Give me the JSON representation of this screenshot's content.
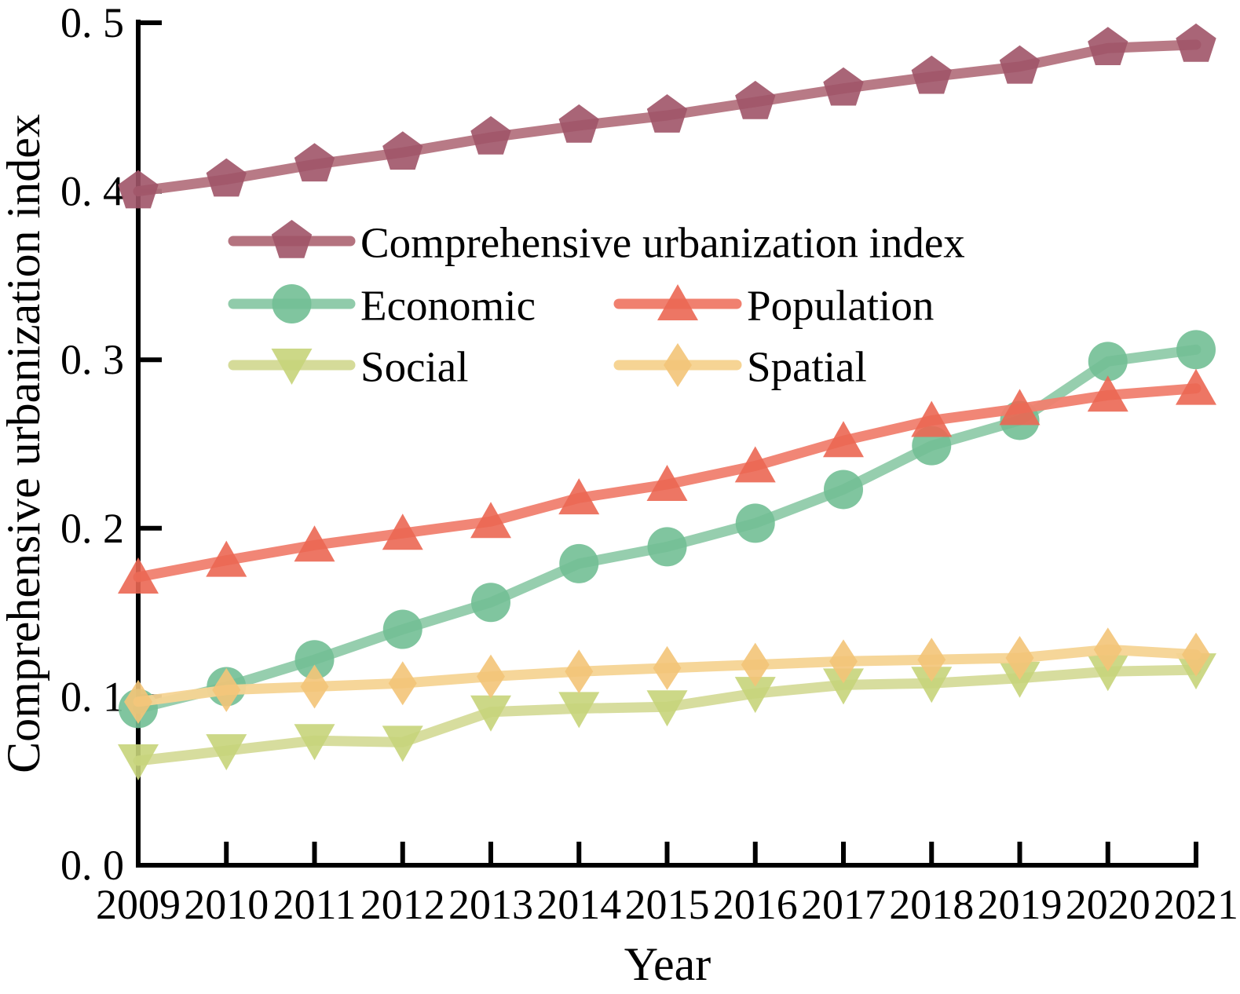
{
  "figure": {
    "background": "#ffffff",
    "axis_color": "#000000",
    "text_color": "#000000"
  },
  "chart_data": {
    "type": "line",
    "title": "",
    "xlabel": "Year",
    "ylabel": "Comprehensive urbanization index",
    "x": [
      2009,
      2010,
      2011,
      2012,
      2013,
      2014,
      2015,
      2016,
      2017,
      2018,
      2019,
      2020,
      2021
    ],
    "x_tick_labels": [
      "2009",
      "2010",
      "2011",
      "2012",
      "2013",
      "2014",
      "2015",
      "2016",
      "2017",
      "2018",
      "2019",
      "2020",
      "2021"
    ],
    "y_ticks": [
      0.0,
      0.1,
      0.2,
      0.3,
      0.4,
      0.5
    ],
    "y_tick_labels": [
      "0. 0",
      "0. 1",
      "0. 2",
      "0. 3",
      "0. 4",
      "0. 5"
    ],
    "ylim": [
      0.0,
      0.5
    ],
    "grid": false,
    "legend_position": "upper-left-inside",
    "series": [
      {
        "name": "Comprehensive urbanization index",
        "marker": "pentagon",
        "line_color": "#b4737f",
        "marker_color": "#a05468",
        "values": [
          0.4,
          0.407,
          0.416,
          0.423,
          0.432,
          0.439,
          0.445,
          0.453,
          0.461,
          0.468,
          0.474,
          0.485,
          0.487
        ]
      },
      {
        "name": "Economic",
        "marker": "circle",
        "line_color": "#90cbaa",
        "marker_color": "#72bf95",
        "values": [
          0.093,
          0.106,
          0.122,
          0.14,
          0.156,
          0.179,
          0.189,
          0.203,
          0.223,
          0.249,
          0.264,
          0.299,
          0.306
        ]
      },
      {
        "name": "Population",
        "marker": "triangle-up",
        "line_color": "#f0806f",
        "marker_color": "#eb6753",
        "values": [
          0.171,
          0.181,
          0.19,
          0.197,
          0.204,
          0.218,
          0.226,
          0.237,
          0.252,
          0.264,
          0.271,
          0.279,
          0.283
        ]
      },
      {
        "name": "Social",
        "marker": "triangle-down",
        "line_color": "#d5db99",
        "marker_color": "#c7d47a",
        "values": [
          0.062,
          0.068,
          0.074,
          0.073,
          0.091,
          0.093,
          0.094,
          0.102,
          0.107,
          0.108,
          0.111,
          0.115,
          0.116
        ]
      },
      {
        "name": "Spatial",
        "marker": "diamond",
        "line_color": "#f6d494",
        "marker_color": "#f3c478",
        "values": [
          0.097,
          0.104,
          0.106,
          0.108,
          0.112,
          0.115,
          0.117,
          0.119,
          0.121,
          0.122,
          0.123,
          0.128,
          0.125
        ]
      }
    ]
  }
}
